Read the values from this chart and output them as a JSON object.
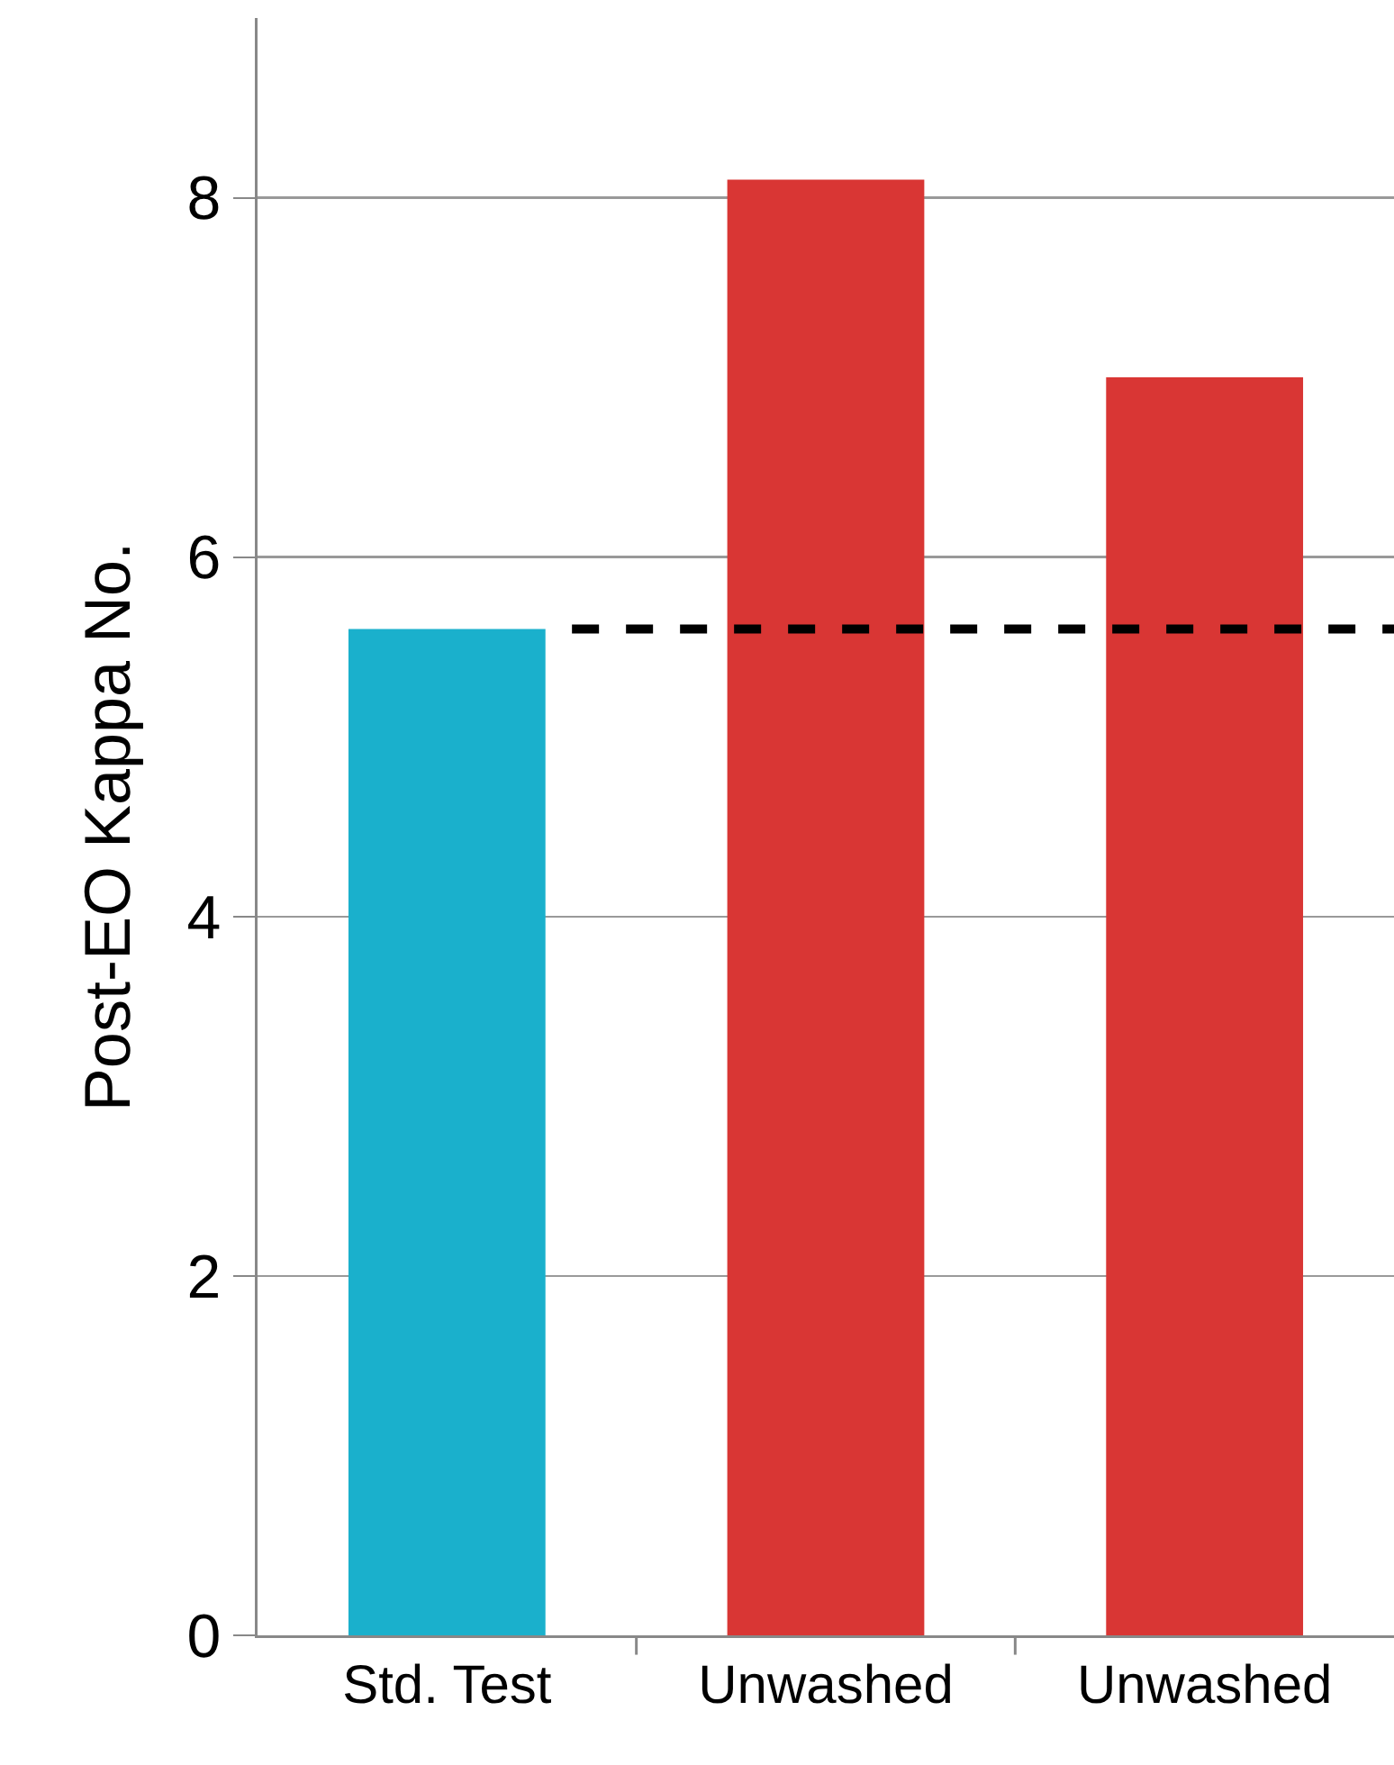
{
  "chart_data": {
    "type": "bar",
    "ylabel": "Post-EO Kappa No.",
    "categories": [
      "Std. Test",
      "Unwashed",
      "Unwashed"
    ],
    "values": [
      5.6,
      8.1,
      7.0
    ],
    "colors": [
      "#1ab0cc",
      "#d93634",
      "#d93634"
    ],
    "ylim": [
      0,
      9
    ],
    "yticks": [
      0,
      2,
      4,
      6,
      8
    ],
    "grid": "y",
    "ref_lines": [
      {
        "axis": "y",
        "value": 5.6,
        "color": "#000000",
        "line_style": "dashed"
      }
    ]
  }
}
